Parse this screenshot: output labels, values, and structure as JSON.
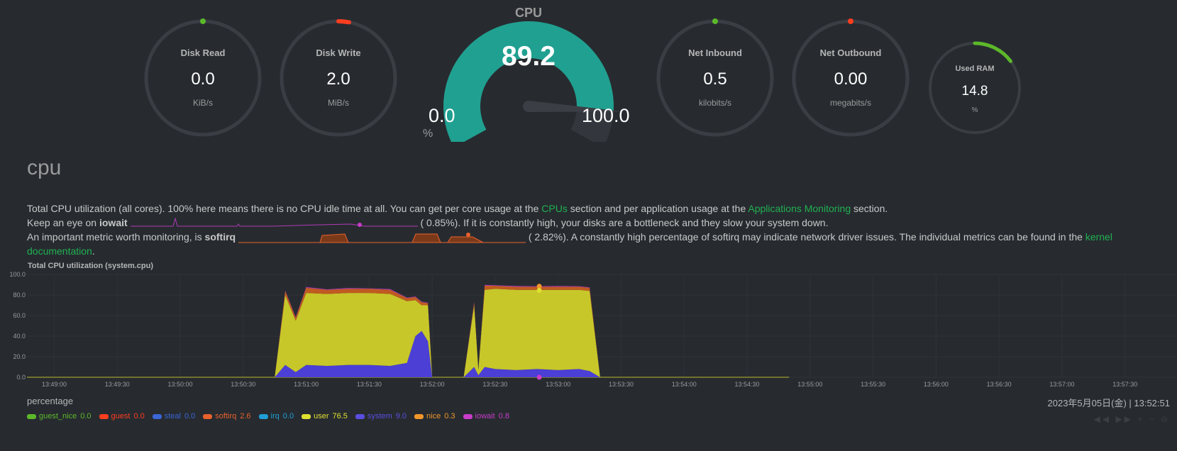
{
  "gauges": [
    {
      "title": "Disk Read",
      "value": "0.0",
      "unit": "KiB/s",
      "fraction": 0.0,
      "color": "#5cb82a"
    },
    {
      "title": "Disk Write",
      "value": "2.0",
      "unit": "MiB/s",
      "fraction": 0.03,
      "color": "#ff3d1f"
    },
    {
      "title": "Net Inbound",
      "value": "0.5",
      "unit": "kilobits/s",
      "fraction": 0.0,
      "color": "#5cb82a"
    },
    {
      "title": "Net Outbound",
      "value": "0.00",
      "unit": "megabits/s",
      "fraction": 0.0,
      "color": "#ff3d1f"
    },
    {
      "title": "Used RAM",
      "value": "14.8",
      "unit": "%",
      "fraction": 0.148,
      "color": "#5cb82a"
    }
  ],
  "cpu_gauge": {
    "title": "CPU",
    "value": "89.2",
    "min": "0.0",
    "max": "100.0",
    "unit": "%",
    "fraction": 0.892,
    "color": "#20a090"
  },
  "section": {
    "title": "cpu",
    "line1_a": "Total CPU utilization (all cores). 100% here means there is no CPU idle time at all. You can get per core usage at the ",
    "line1_link1": "CPUs",
    "line1_b": " section and per application usage at the ",
    "line1_link2": "Applications Monitoring",
    "line1_c": " section.",
    "line2_a": "Keep an eye on ",
    "line2_bold": "iowait",
    "line2_val": "(      0.85%). If it is constantly high, your disks are a bottleneck and they slow your system down.",
    "line3_a": "An important metric worth monitoring, is ",
    "line3_bold": "softirq",
    "line3_val": "(      2.82%). A constantly high percentage of softirq may indicate network driver issues. The individual metrics can be found in the ",
    "line3_link": "kernel",
    "line4_link": "documentation",
    "line4_end": "."
  },
  "chart_title": "Total CPU utilization (system.cpu)",
  "units_label": "percentage",
  "datetime": "2023年5月05日(金) | 13:52:51",
  "legend": [
    {
      "name": "guest_nice",
      "value": "0.0",
      "color": "#5cb82a"
    },
    {
      "name": "guest",
      "value": "0.0",
      "color": "#ff3d1f"
    },
    {
      "name": "steal",
      "value": "0.0",
      "color": "#3a66d6"
    },
    {
      "name": "softirq",
      "value": "2.6",
      "color": "#e8612c"
    },
    {
      "name": "irq",
      "value": "0.0",
      "color": "#1f9fd6"
    },
    {
      "name": "user",
      "value": "76.5",
      "color": "#e0e030"
    },
    {
      "name": "system",
      "value": "9.0",
      "color": "#5a4de0"
    },
    {
      "name": "nice",
      "value": "0.3",
      "color": "#f0962a"
    },
    {
      "name": "iowait",
      "value": "0.8",
      "color": "#c93cc9"
    }
  ],
  "nav_icons": "◀◀ ▶▶ + − ⊖",
  "chart_data": {
    "type": "area",
    "title": "Total CPU utilization (system.cpu)",
    "ylabel": "percentage",
    "ylim": [
      0,
      100
    ],
    "yticks": [
      "100.0",
      "80.0",
      "60.0",
      "40.0",
      "20.0",
      "0.0"
    ],
    "xticks": [
      "13:49:00",
      "13:49:30",
      "13:50:00",
      "13:50:30",
      "13:51:00",
      "13:51:30",
      "13:52:00",
      "13:52:30",
      "13:53:00",
      "13:53:30",
      "13:54:00",
      "13:54:30",
      "13:55:00",
      "13:55:30",
      "13:56:00",
      "13:56:30",
      "13:57:00",
      "13:57:30"
    ],
    "x": [
      "13:50:45",
      "13:50:50",
      "13:50:55",
      "13:51:00",
      "13:51:10",
      "13:51:20",
      "13:51:30",
      "13:51:40",
      "13:51:48",
      "13:51:52",
      "13:51:55",
      "13:51:58",
      "13:52:00",
      "13:52:15",
      "13:52:20",
      "13:52:22",
      "13:52:25",
      "13:52:30",
      "13:52:40",
      "13:52:50",
      "13:53:00",
      "13:53:10",
      "13:53:15",
      "13:53:20"
    ],
    "series": [
      {
        "name": "system",
        "values": [
          0,
          12,
          5,
          12,
          11,
          12,
          12,
          11,
          14,
          40,
          45,
          35,
          0,
          0,
          10,
          2,
          10,
          8,
          7,
          8,
          7,
          8,
          6,
          0
        ]
      },
      {
        "name": "user",
        "values": [
          0,
          68,
          50,
          70,
          70,
          70,
          70,
          70,
          60,
          35,
          25,
          35,
          0,
          0,
          60,
          5,
          75,
          78,
          78,
          77,
          78,
          77,
          78,
          0
        ]
      },
      {
        "name": "softirq",
        "values": [
          0,
          4,
          3,
          5,
          4,
          4,
          4,
          4,
          3,
          3,
          3,
          2,
          0,
          0,
          3,
          0,
          4,
          3,
          3,
          3,
          3,
          3,
          3,
          0
        ]
      },
      {
        "name": "iowait",
        "values": [
          0,
          0.5,
          0.5,
          0.8,
          0.5,
          0.8,
          0.5,
          0.8,
          0.5,
          0.5,
          0.5,
          0.5,
          0,
          0,
          0.5,
          0,
          0.8,
          0.5,
          0.8,
          0.5,
          0.8,
          0.5,
          0.5,
          0
        ]
      }
    ]
  }
}
